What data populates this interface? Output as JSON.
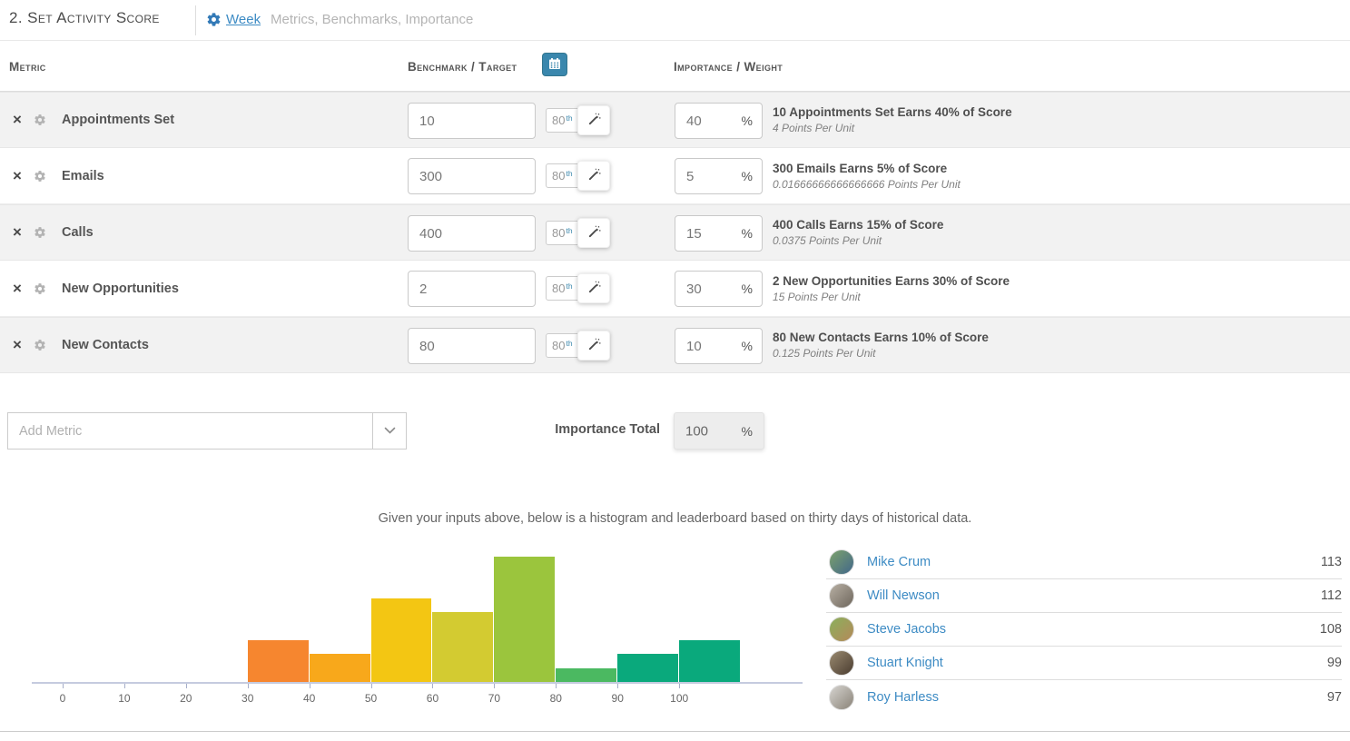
{
  "header": {
    "title": "2. Set Activity Score",
    "period_label": "Week",
    "subtitle": "Metrics, Benchmarks, Importance",
    "gear_icon": "gear-icon",
    "accent_blue": "#337ab7"
  },
  "table": {
    "columns": {
      "metric": "Metric",
      "benchmark": "Benchmark / Target",
      "importance": "Importance / Weight"
    },
    "calendar_button_color": "#3a87ad",
    "percent_sign": "%",
    "rows": [
      {
        "name": "Appointments Set",
        "benchmark": "10",
        "percentile": "80",
        "percentile_suffix": "th",
        "importance": "40",
        "summary": "10 Appointments Set Earns 40% of Score",
        "points": "4 Points Per Unit"
      },
      {
        "name": "Emails",
        "benchmark": "300",
        "percentile": "80",
        "percentile_suffix": "th",
        "importance": "5",
        "summary": "300 Emails Earns 5% of Score",
        "points": "0.01666666666666666 Points Per Unit"
      },
      {
        "name": "Calls",
        "benchmark": "400",
        "percentile": "80",
        "percentile_suffix": "th",
        "importance": "15",
        "summary": "400 Calls Earns 15% of Score",
        "points": "0.0375 Points Per Unit"
      },
      {
        "name": "New Opportunities",
        "benchmark": "2",
        "percentile": "80",
        "percentile_suffix": "th",
        "importance": "30",
        "summary": "2 New Opportunities Earns 30% of Score",
        "points": "15 Points Per Unit"
      },
      {
        "name": "New Contacts",
        "benchmark": "80",
        "percentile": "80",
        "percentile_suffix": "th",
        "importance": "10",
        "summary": "80 New Contacts Earns 10% of Score",
        "points": "0.125 Points Per Unit"
      }
    ]
  },
  "add_metric": {
    "placeholder": "Add Metric"
  },
  "importance_total": {
    "label": "Importance Total",
    "value": "100",
    "percent_sign": "%"
  },
  "note": "Given your inputs above, below is a histogram and leaderboard based on thirty days of historical data.",
  "chart_data": {
    "type": "bar",
    "title": "",
    "xlabel": "",
    "ylabel": "",
    "bins": [
      [
        30,
        40
      ],
      [
        40,
        50
      ],
      [
        50,
        60
      ],
      [
        60,
        70
      ],
      [
        70,
        80
      ],
      [
        80,
        90
      ],
      [
        90,
        100
      ],
      [
        100,
        110
      ]
    ],
    "values": [
      3,
      2,
      6,
      5,
      9,
      1,
      2,
      3
    ],
    "colors": [
      "#f6862f",
      "#f8a81b",
      "#f3c613",
      "#d3cb31",
      "#9bc53d",
      "#4bb961",
      "#0aa97c",
      "#0aa97c"
    ],
    "xticks": [
      0,
      10,
      20,
      30,
      40,
      50,
      60,
      70,
      80,
      90,
      100
    ],
    "xlim": [
      -5,
      120
    ],
    "ymax": 9,
    "grid": false,
    "legend": false
  },
  "leaderboard": {
    "players": [
      {
        "name": "Mike Crum",
        "score": "113",
        "avatar_colors": [
          "#7da26b",
          "#41678a"
        ]
      },
      {
        "name": "Will Newson",
        "score": "112",
        "avatar_colors": [
          "#b8b0a4",
          "#6e665c"
        ]
      },
      {
        "name": "Steve Jacobs",
        "score": "108",
        "avatar_colors": [
          "#8ab05c",
          "#b5895a"
        ]
      },
      {
        "name": "Stuart Knight",
        "score": "99",
        "avatar_colors": [
          "#9a8a70",
          "#4a3c30"
        ]
      },
      {
        "name": "Roy Harless",
        "score": "97",
        "avatar_colors": [
          "#d6d4d0",
          "#8a8378"
        ]
      }
    ]
  }
}
